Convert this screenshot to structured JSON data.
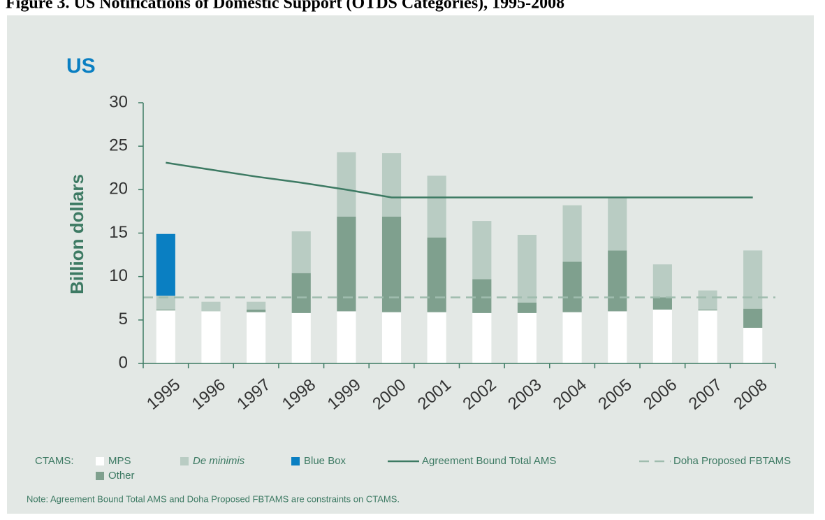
{
  "chart_data": {
    "type": "bar",
    "stacked": true,
    "title": "Figure 3.  US Notifications of Domestic Support (OTDS Categories), 1995-2008",
    "panel_label": "US",
    "y_label": "Billion dollars",
    "categories": [
      "1995",
      "1996",
      "1997",
      "1998",
      "1999",
      "2000",
      "2001",
      "2002",
      "2003",
      "2004",
      "2005",
      "2006",
      "2007",
      "2008"
    ],
    "series": [
      {
        "name": "MPS",
        "color": "#ffffff",
        "values": [
          6.1,
          6.0,
          5.9,
          5.8,
          6.0,
          5.9,
          5.9,
          5.8,
          5.8,
          5.9,
          6.0,
          6.2,
          6.1,
          4.1
        ]
      },
      {
        "name": "Other",
        "color": "#7fa08e",
        "values": [
          0.1,
          0,
          0.3,
          4.6,
          10.9,
          11.0,
          8.6,
          3.9,
          1.2,
          5.8,
          7.0,
          1.4,
          0.1,
          2.2
        ]
      },
      {
        "name": "De minimis",
        "color": "#b9ccc3",
        "italic_legend": true,
        "values": [
          1.6,
          1.1,
          0.9,
          4.8,
          7.4,
          7.3,
          7.1,
          6.7,
          7.8,
          6.5,
          6.0,
          3.8,
          2.2,
          6.7
        ]
      },
      {
        "name": "Blue Box",
        "color": "#0a7fc2",
        "values": [
          7.1,
          0,
          0,
          0,
          0,
          0,
          0,
          0,
          0,
          0,
          0,
          0,
          0,
          0
        ]
      }
    ],
    "line": {
      "name": "Agreement Bound Total  AMS",
      "color": "#3d7a63",
      "values": [
        23.1,
        22.3,
        21.5,
        20.8,
        20.0,
        19.1,
        19.1,
        19.1,
        19.1,
        19.1,
        19.1,
        19.1,
        19.1,
        19.1
      ]
    },
    "reference": {
      "name": "Doha Proposed FBTAMS",
      "color": "#9fbcae",
      "value": 7.6
    },
    "legend_prefix": "CTAMS:",
    "note": "Note: Agreement Bound Total AMS and Doha Proposed FBTAMS are constraints on CTAMS.",
    "ylim": [
      0,
      30
    ],
    "yticks": [
      0,
      5,
      10,
      15,
      20,
      25,
      30
    ]
  }
}
